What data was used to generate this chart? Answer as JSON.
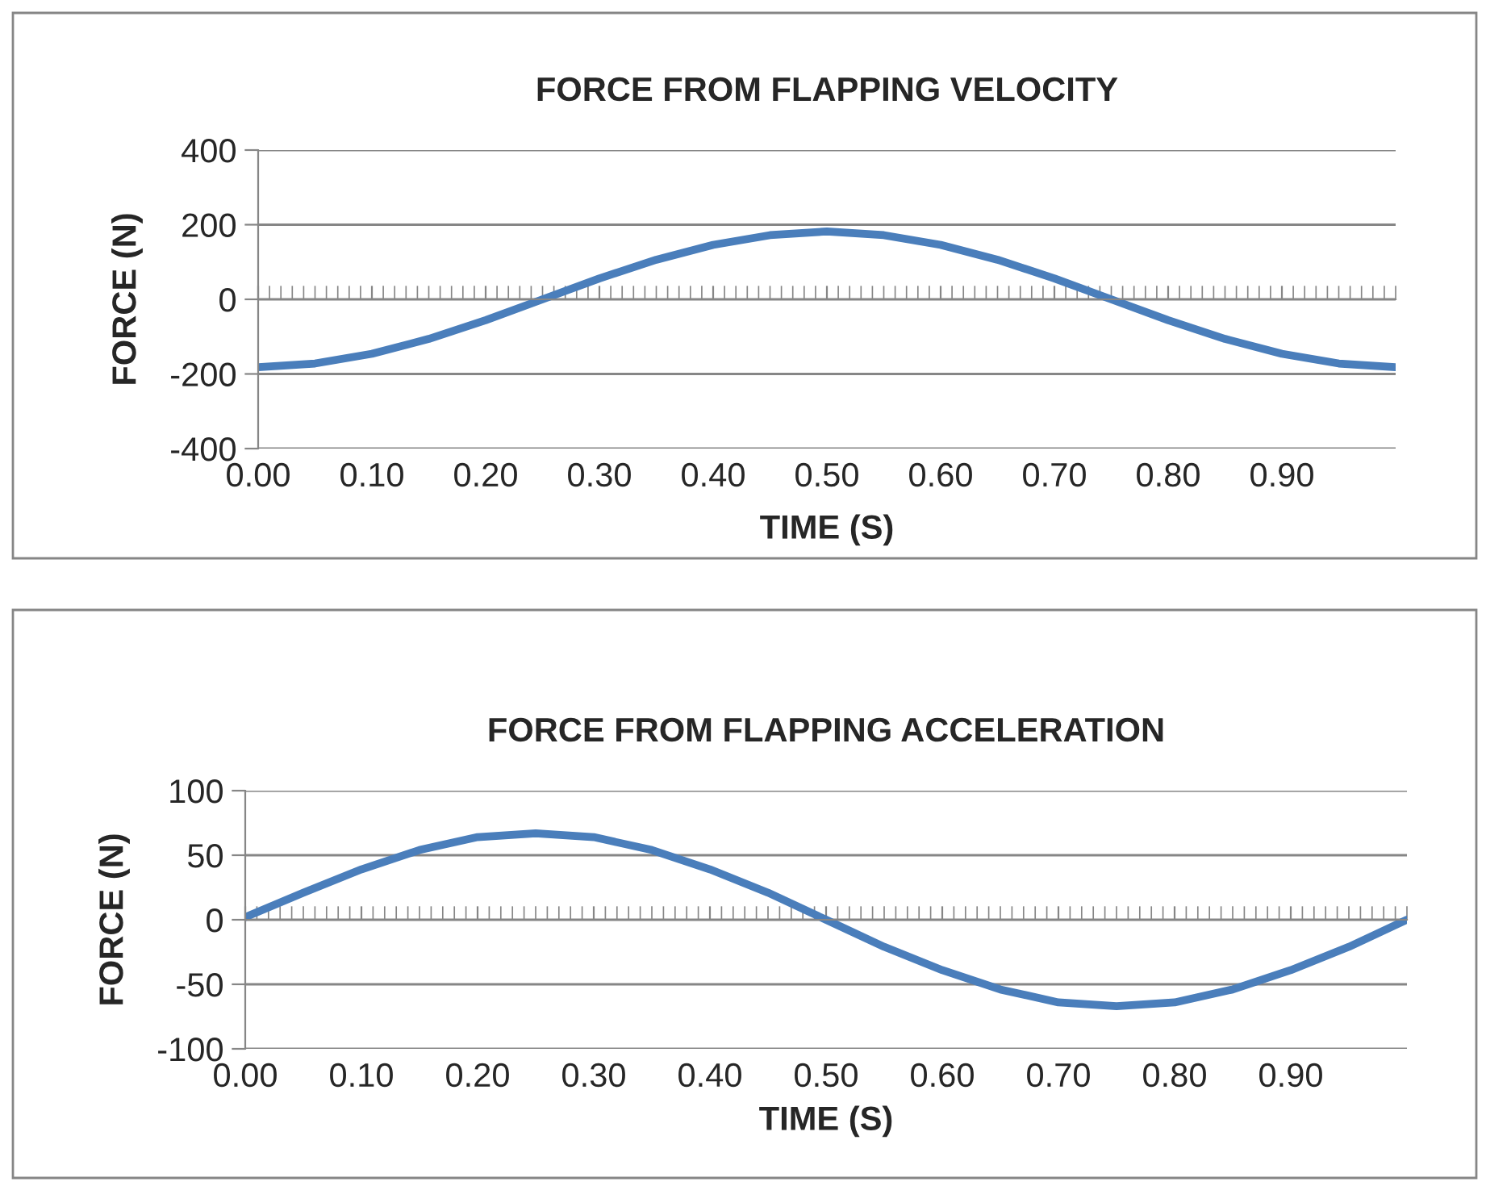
{
  "chart_data": [
    {
      "type": "line",
      "title": "FORCE FROM FLAPPING VELOCITY",
      "xlabel": "TIME (S)",
      "ylabel": "FORCE (N)",
      "x": [
        0,
        0.05,
        0.1,
        0.15,
        0.2,
        0.25,
        0.3,
        0.35,
        0.4,
        0.45,
        0.5,
        0.55,
        0.6,
        0.65,
        0.7,
        0.75,
        0.8,
        0.85,
        0.9,
        0.95,
        1.0
      ],
      "series": [
        {
          "color": "#4a7ebb",
          "values": [
            -182,
            -172,
            -146,
            -106,
            -56,
            0,
            56,
            106,
            146,
            172,
            182,
            172,
            146,
            106,
            56,
            0,
            -56,
            -106,
            -146,
            -172,
            -182
          ]
        }
      ],
      "xlim": [
        0,
        1.0
      ],
      "xticks": [
        {
          "value": 0,
          "label": "0.00"
        },
        {
          "value": 0.1,
          "label": "0.10"
        },
        {
          "value": 0.2,
          "label": "0.20"
        },
        {
          "value": 0.3,
          "label": "0.30"
        },
        {
          "value": 0.4,
          "label": "0.40"
        },
        {
          "value": 0.5,
          "label": "0.50"
        },
        {
          "value": 0.6,
          "label": "0.60"
        },
        {
          "value": 0.7,
          "label": "0.70"
        },
        {
          "value": 0.8,
          "label": "0.80"
        },
        {
          "value": 0.9,
          "label": "0.90"
        }
      ],
      "ylim": [
        -400,
        400
      ],
      "yticks": [
        -400,
        -200,
        0,
        200,
        400
      ],
      "grid": "y"
    },
    {
      "type": "line",
      "title": "FORCE FROM FLAPPING ACCELERATION",
      "xlabel": "TIME (S)",
      "ylabel": "FORCE (N)",
      "x": [
        0,
        0.05,
        0.1,
        0.15,
        0.2,
        0.25,
        0.3,
        0.35,
        0.4,
        0.45,
        0.5,
        0.55,
        0.6,
        0.65,
        0.7,
        0.75,
        0.8,
        0.85,
        0.9,
        0.95,
        1.0
      ],
      "series": [
        {
          "color": "#4a7ebb",
          "values": [
            2,
            21,
            39,
            54,
            64,
            67,
            64,
            54,
            39,
            21,
            0,
            -21,
            -39,
            -54,
            -64,
            -67,
            -64,
            -54,
            -39,
            -21,
            0
          ]
        }
      ],
      "xlim": [
        0,
        1.0
      ],
      "xticks": [
        {
          "value": 0,
          "label": "0.00"
        },
        {
          "value": 0.1,
          "label": "0.10"
        },
        {
          "value": 0.2,
          "label": "0.20"
        },
        {
          "value": 0.3,
          "label": "0.30"
        },
        {
          "value": 0.4,
          "label": "0.40"
        },
        {
          "value": 0.5,
          "label": "0.50"
        },
        {
          "value": 0.6,
          "label": "0.60"
        },
        {
          "value": 0.7,
          "label": "0.70"
        },
        {
          "value": 0.8,
          "label": "0.80"
        },
        {
          "value": 0.9,
          "label": "0.90"
        }
      ],
      "ylim": [
        -100,
        100
      ],
      "yticks": [
        -100,
        -50,
        0,
        50,
        100
      ],
      "grid": "y"
    }
  ]
}
